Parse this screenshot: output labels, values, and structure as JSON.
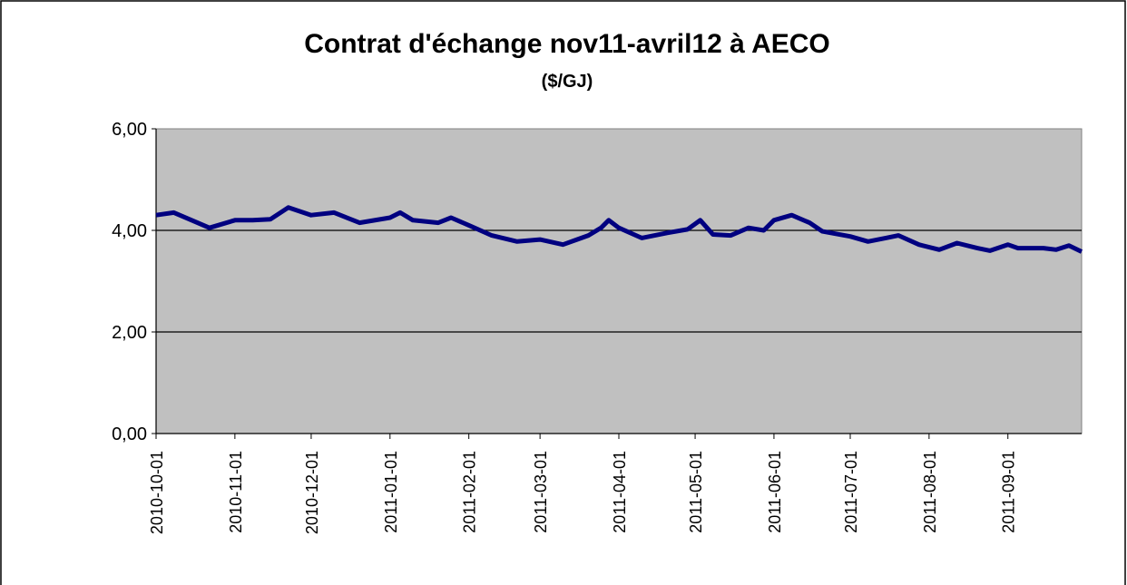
{
  "chart_data": {
    "type": "line",
    "title": "Contrat d'échange nov11-avril12 à AECO",
    "subtitle": "($/GJ)",
    "x": [
      "2010-10-01",
      "2010-10-08",
      "2010-10-15",
      "2010-10-22",
      "2010-11-01",
      "2010-11-08",
      "2010-11-15",
      "2010-11-22",
      "2010-12-01",
      "2010-12-10",
      "2010-12-20",
      "2011-01-01",
      "2011-01-05",
      "2011-01-10",
      "2011-01-20",
      "2011-01-25",
      "2011-02-01",
      "2011-02-10",
      "2011-02-20",
      "2011-03-01",
      "2011-03-10",
      "2011-03-20",
      "2011-03-25",
      "2011-03-28",
      "2011-04-01",
      "2011-04-10",
      "2011-04-20",
      "2011-04-28",
      "2011-05-03",
      "2011-05-08",
      "2011-05-15",
      "2011-05-22",
      "2011-05-28",
      "2011-06-01",
      "2011-06-08",
      "2011-06-15",
      "2011-06-20",
      "2011-07-01",
      "2011-07-08",
      "2011-07-15",
      "2011-07-20",
      "2011-07-28",
      "2011-08-05",
      "2011-08-12",
      "2011-08-20",
      "2011-08-25",
      "2011-09-01",
      "2011-09-05",
      "2011-09-15",
      "2011-09-20",
      "2011-09-25",
      "2011-09-30"
    ],
    "series": [
      {
        "name": "AECO",
        "color": "#000080",
        "values": [
          4.3,
          4.35,
          4.2,
          4.05,
          4.2,
          4.2,
          4.22,
          4.45,
          4.3,
          4.35,
          4.15,
          4.25,
          4.35,
          4.2,
          4.15,
          4.25,
          4.1,
          3.9,
          3.78,
          3.82,
          3.72,
          3.9,
          4.05,
          4.2,
          4.05,
          3.85,
          3.95,
          4.02,
          4.2,
          3.92,
          3.9,
          4.05,
          4.0,
          4.2,
          4.3,
          4.15,
          3.98,
          3.88,
          3.78,
          3.85,
          3.9,
          3.72,
          3.62,
          3.75,
          3.65,
          3.6,
          3.72,
          3.65,
          3.65,
          3.62,
          3.7,
          3.58
        ]
      }
    ],
    "xlim": [
      "2010-10-01",
      "2011-09-30"
    ],
    "xticks": [
      "2010-10-01",
      "2010-11-01",
      "2010-12-01",
      "2011-01-01",
      "2011-02-01",
      "2011-03-01",
      "2011-04-01",
      "2011-05-01",
      "2011-06-01",
      "2011-07-01",
      "2011-08-01",
      "2011-09-01"
    ],
    "ylim": [
      0,
      6
    ],
    "yticks": [
      {
        "value": 0,
        "label": "0,00"
      },
      {
        "value": 2,
        "label": "2,00"
      },
      {
        "value": 4,
        "label": "4,00"
      },
      {
        "value": 6,
        "label": "6,00"
      }
    ],
    "grid": true
  }
}
